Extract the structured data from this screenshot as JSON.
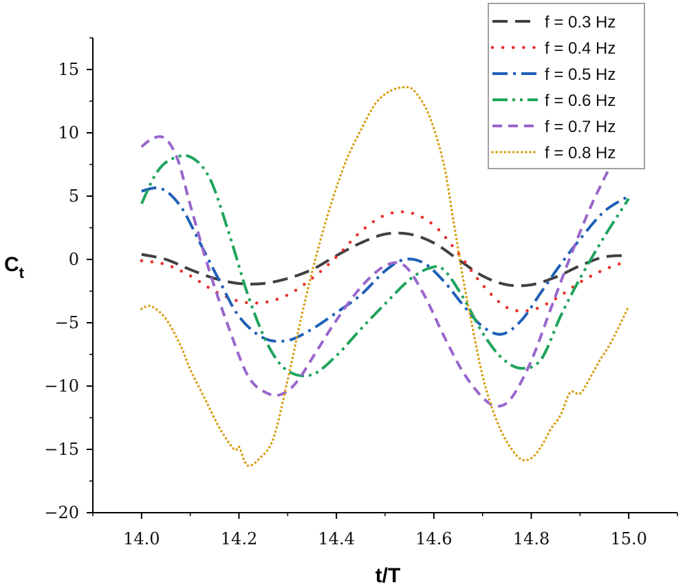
{
  "chart_data": {
    "type": "line",
    "title": "",
    "xlabel": "t/T",
    "ylabel": "C",
    "ylabel_subscript": "t",
    "xlim": [
      13.9,
      15.1
    ],
    "ylim": [
      -20,
      17.5
    ],
    "xticks": [
      14.0,
      14.2,
      14.4,
      14.6,
      14.8,
      15.0
    ],
    "xtick_labels": [
      "14.0",
      "14.2",
      "14.4",
      "14.6",
      "14.8",
      "15.0"
    ],
    "yticks": [
      -20,
      -15,
      -10,
      -5,
      0,
      5,
      10,
      15
    ],
    "ytick_labels": [
      "−20",
      "−15",
      "−10",
      "−5",
      "0",
      "5",
      "10",
      "15"
    ],
    "grid": false,
    "legend_position": "top-right",
    "series": [
      {
        "name": "f = 0.3 Hz",
        "color": "#404040",
        "style": "dash",
        "x": [
          14.0,
          14.05,
          14.1,
          14.15,
          14.2,
          14.25,
          14.3,
          14.35,
          14.4,
          14.45,
          14.5,
          14.55,
          14.6,
          14.65,
          14.7,
          14.75,
          14.8,
          14.85,
          14.9,
          14.95,
          15.0
        ],
        "y": [
          0.4,
          0.0,
          -0.8,
          -1.5,
          -1.9,
          -1.9,
          -1.5,
          -0.8,
          0.3,
          1.3,
          2.0,
          2.0,
          1.3,
          0.0,
          -1.3,
          -2.0,
          -2.0,
          -1.4,
          -0.5,
          0.2,
          0.3
        ]
      },
      {
        "name": "f = 0.4 Hz",
        "color": "#e8322d",
        "style": "dot",
        "x": [
          14.0,
          14.05,
          14.1,
          14.15,
          14.2,
          14.25,
          14.3,
          14.35,
          14.4,
          14.45,
          14.5,
          14.55,
          14.6,
          14.65,
          14.7,
          14.75,
          14.8,
          14.85,
          14.9,
          14.95,
          15.0
        ],
        "y": [
          -0.1,
          -0.4,
          -1.3,
          -2.5,
          -3.3,
          -3.4,
          -2.8,
          -1.5,
          0.2,
          2.2,
          3.5,
          3.7,
          2.7,
          0.5,
          -2.0,
          -3.8,
          -4.0,
          -3.1,
          -1.8,
          -0.8,
          -0.1
        ]
      },
      {
        "name": "f = 0.5 Hz",
        "color": "#1f5fb6",
        "style": "dashdot",
        "x": [
          14.0,
          14.04,
          14.08,
          14.12,
          14.16,
          14.2,
          14.25,
          14.3,
          14.35,
          14.4,
          14.45,
          14.5,
          14.54,
          14.58,
          14.62,
          14.66,
          14.7,
          14.74,
          14.78,
          14.82,
          14.86,
          14.9,
          14.95,
          15.0
        ],
        "y": [
          5.4,
          5.6,
          4.2,
          1.3,
          -1.7,
          -4.5,
          -6.2,
          -6.4,
          -5.5,
          -4.2,
          -2.8,
          -0.9,
          0.0,
          -0.3,
          -1.7,
          -3.6,
          -5.3,
          -5.9,
          -4.8,
          -2.6,
          -0.4,
          1.6,
          3.8,
          5.0
        ]
      },
      {
        "name": "f = 0.6 Hz",
        "color": "#1fa35c",
        "style": "dashdotdot",
        "x": [
          14.0,
          14.03,
          14.06,
          14.1,
          14.14,
          14.18,
          14.22,
          14.26,
          14.3,
          14.35,
          14.4,
          14.45,
          14.5,
          14.55,
          14.59,
          14.62,
          14.66,
          14.7,
          14.74,
          14.78,
          14.82,
          14.86,
          14.9,
          14.95,
          15.0
        ],
        "y": [
          4.4,
          6.8,
          7.9,
          8.1,
          6.4,
          2.0,
          -3.0,
          -6.8,
          -8.8,
          -9.1,
          -7.6,
          -5.5,
          -3.5,
          -1.6,
          -0.7,
          -0.8,
          -3.0,
          -5.8,
          -7.8,
          -8.6,
          -7.9,
          -4.5,
          -1.5,
          1.8,
          4.8
        ]
      },
      {
        "name": "f = 0.7 Hz",
        "color": "#9966cc",
        "style": "shortdash",
        "x": [
          14.0,
          14.025,
          14.05,
          14.075,
          14.1,
          14.14,
          14.18,
          14.22,
          14.26,
          14.29,
          14.32,
          14.36,
          14.4,
          14.45,
          14.5,
          14.54,
          14.58,
          14.62,
          14.66,
          14.7,
          14.73,
          14.76,
          14.8,
          14.84,
          14.88,
          14.92,
          14.96
        ],
        "y": [
          8.9,
          9.6,
          9.5,
          7.8,
          4.3,
          -1.0,
          -5.5,
          -9.3,
          -10.6,
          -10.6,
          -9.6,
          -7.2,
          -4.8,
          -2.2,
          -0.5,
          -0.5,
          -2.8,
          -6.0,
          -8.9,
          -10.9,
          -11.6,
          -10.9,
          -8.0,
          -3.9,
          0.2,
          4.0,
          7.2
        ]
      },
      {
        "name": "f = 0.8 Hz",
        "color": "#d9a017",
        "style": "densedot",
        "x": [
          14.0,
          14.02,
          14.05,
          14.08,
          14.1,
          14.13,
          14.16,
          14.19,
          14.2,
          14.21,
          14.22,
          14.24,
          14.27,
          14.3,
          14.33,
          14.36,
          14.39,
          14.42,
          14.45,
          14.48,
          14.51,
          14.54,
          14.56,
          14.59,
          14.62,
          14.64,
          14.66,
          14.68,
          14.7,
          14.72,
          14.74,
          14.76,
          14.78,
          14.8,
          14.82,
          14.84,
          14.86,
          14.88,
          14.9,
          14.92,
          14.94,
          14.96,
          14.98,
          15.0
        ],
        "y": [
          -3.9,
          -3.7,
          -4.7,
          -6.8,
          -8.7,
          -11.0,
          -13.3,
          -15.0,
          -14.8,
          -15.8,
          -16.3,
          -15.8,
          -14.2,
          -9.5,
          -4.2,
          0.5,
          4.5,
          7.8,
          10.2,
          12.3,
          13.3,
          13.6,
          13.3,
          11.4,
          7.6,
          3.1,
          -1.5,
          -5.5,
          -9.2,
          -11.8,
          -13.7,
          -15.0,
          -15.8,
          -15.7,
          -14.8,
          -13.4,
          -12.3,
          -10.5,
          -10.6,
          -9.4,
          -8.0,
          -6.8,
          -5.3,
          -3.7
        ]
      }
    ]
  }
}
